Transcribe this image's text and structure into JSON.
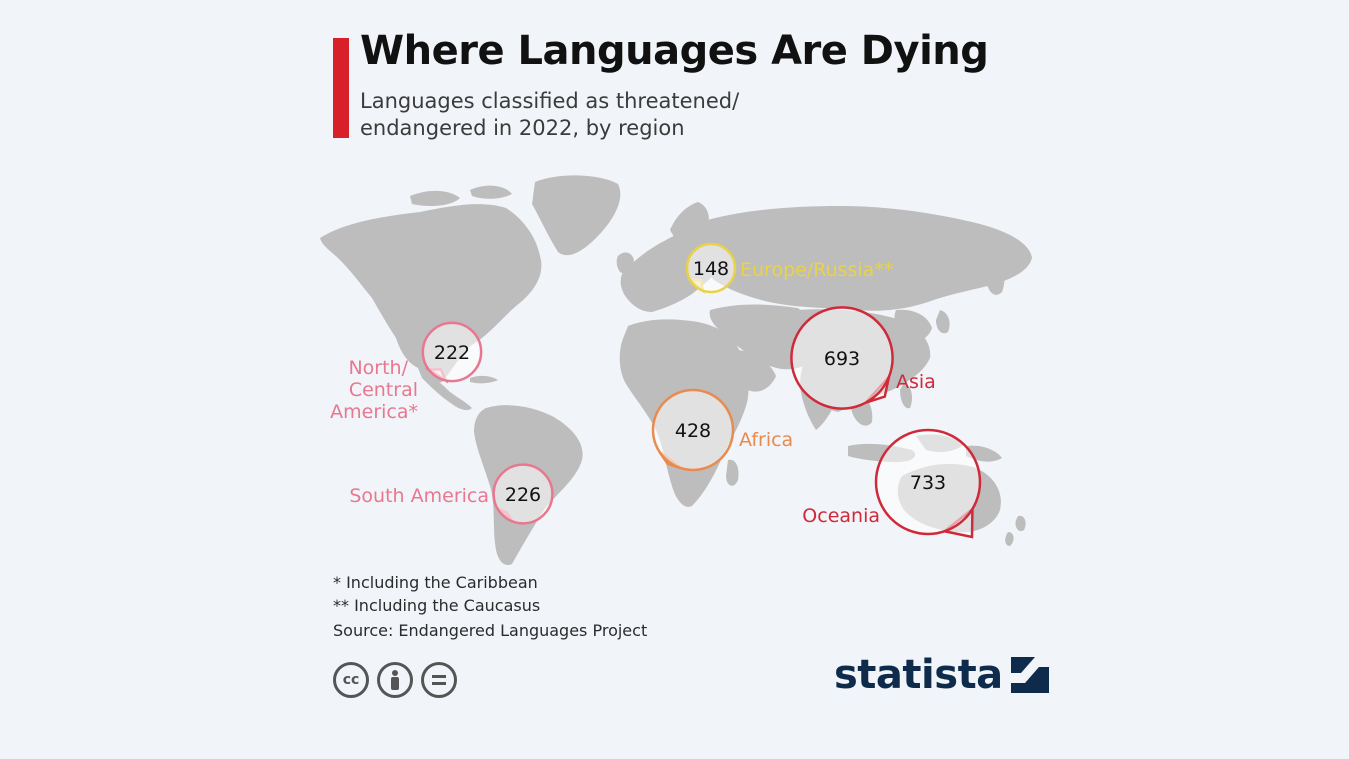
{
  "header": {
    "title": "Where Languages Are Dying",
    "subtitle": "Languages classified as threatened/ endangered in 2022, by region"
  },
  "colors": {
    "accent": "#d8202a",
    "land": "#bdbdbd",
    "background": "#f1f4f8"
  },
  "regions": [
    {
      "name": "Europe/Russia**",
      "value": 148,
      "color": "#e9d247"
    },
    {
      "name": "North/ Central America*",
      "value": 222,
      "color": "#e8788f"
    },
    {
      "name": "Asia",
      "value": 693,
      "color": "#cf2a3a"
    },
    {
      "name": "Africa",
      "value": 428,
      "color": "#e98a4e"
    },
    {
      "name": "South America",
      "value": 226,
      "color": "#e8788f"
    },
    {
      "name": "Oceania",
      "value": 733,
      "color": "#cf2a3a"
    }
  ],
  "footnotes": {
    "note1": "*   Including the Caribbean",
    "note2": "** Including the Caucasus",
    "source": "Source: Endangered Languages Project"
  },
  "license_icons": [
    "cc-icon",
    "attribution-icon",
    "no-derivatives-icon"
  ],
  "brand": {
    "name": "statista"
  }
}
